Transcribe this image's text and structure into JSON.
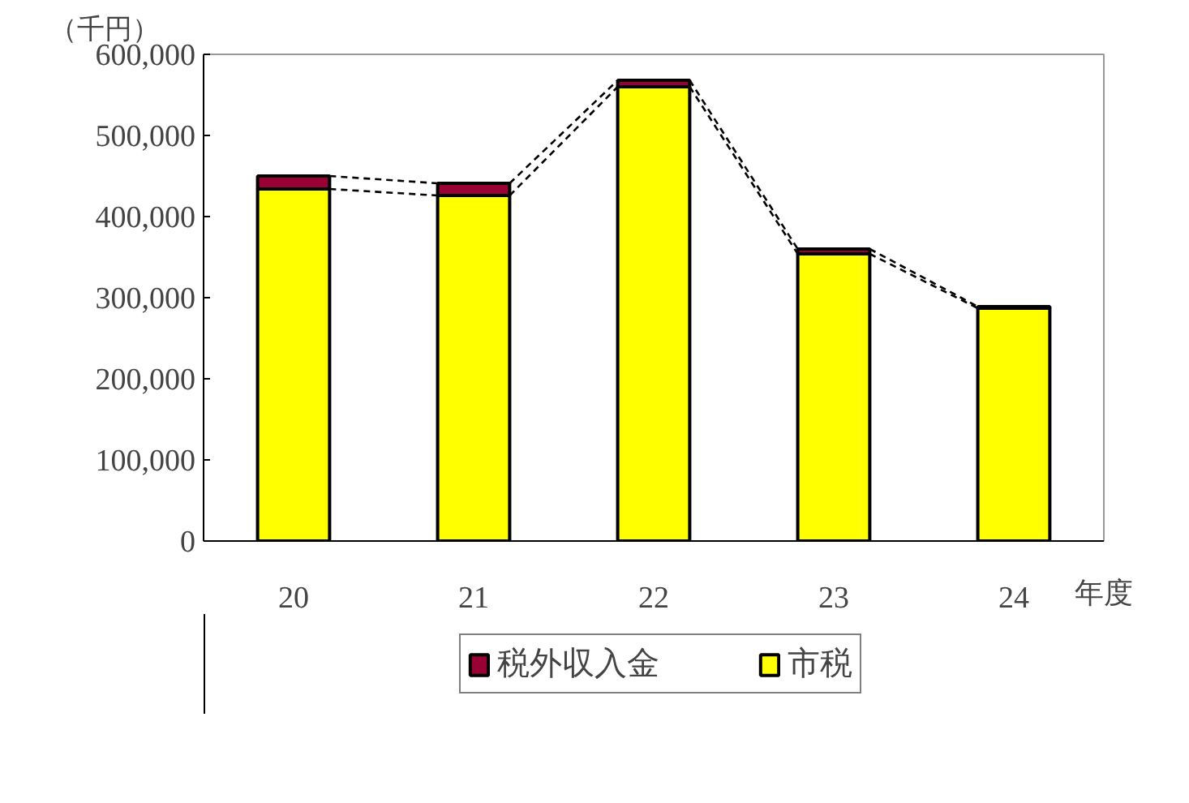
{
  "chart_data": {
    "type": "bar",
    "stacked": true,
    "ylabel": "（千円）",
    "xlabel": "年度",
    "categories": [
      "20",
      "21",
      "22",
      "23",
      "24"
    ],
    "series": [
      {
        "name": "市税",
        "color": "#ffff00",
        "values": [
          434000,
          426000,
          560000,
          354000,
          287000
        ]
      },
      {
        "name": "税外収入金",
        "color": "#990033",
        "values": [
          16000,
          15000,
          8000,
          6000,
          2000
        ]
      }
    ],
    "ylim": [
      0,
      600000
    ],
    "yticks": [
      {
        "value": 0,
        "label": "0"
      },
      {
        "value": 100000,
        "label": "100,000"
      },
      {
        "value": 200000,
        "label": "200,000"
      },
      {
        "value": 300000,
        "label": "300,000"
      },
      {
        "value": 400000,
        "label": "400,000"
      },
      {
        "value": 500000,
        "label": "500,000"
      },
      {
        "value": 600000,
        "label": "600,000"
      }
    ],
    "grid": false,
    "legend": "bottom"
  }
}
